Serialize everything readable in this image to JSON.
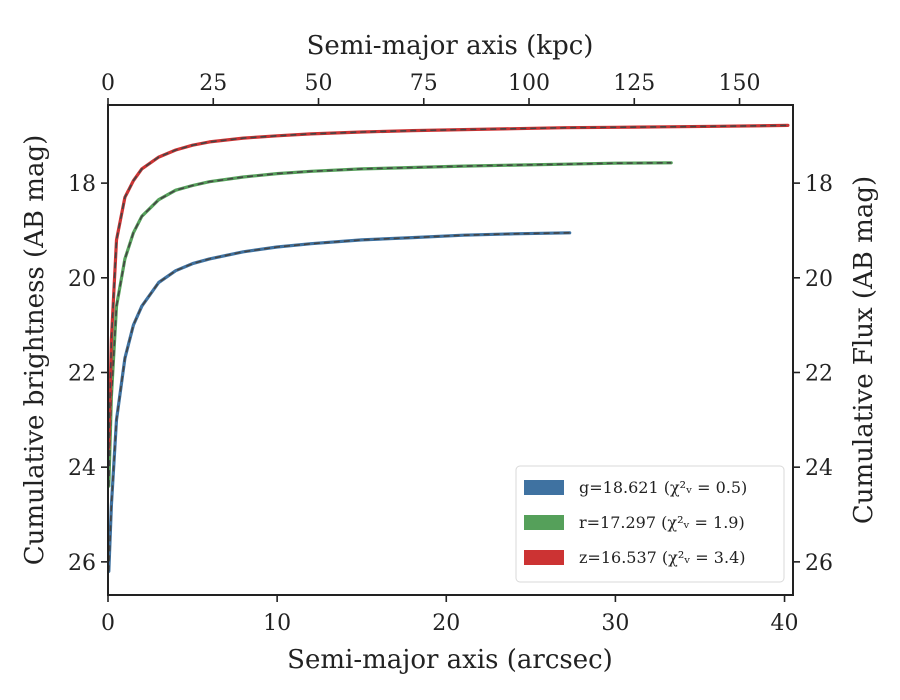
{
  "chart_data": {
    "type": "line",
    "xlabel": "Semi-major axis (arcsec)",
    "ylabel": "Cumulative brightness (AB mag)",
    "top_xlabel": "Semi-major axis (kpc)",
    "right_ylabel": "Cumulative Flux (AB mag)",
    "xlim": [
      0,
      40.5
    ],
    "ylim": [
      26.7,
      16.35
    ],
    "top_xlim": [
      0,
      162.7
    ],
    "x_ticks": [
      0,
      10,
      20,
      30,
      40
    ],
    "y_ticks": [
      18,
      20,
      22,
      24,
      26
    ],
    "top_x_ticks": [
      0,
      25,
      50,
      75,
      100,
      125,
      150
    ],
    "legend_position": "lower-right",
    "grid": false,
    "series": [
      {
        "name": "g=18.621",
        "chi_label": "(χ²ᵥ = 0.5)",
        "color": "#3f72a1",
        "x": [
          0.05,
          0.2,
          0.5,
          1,
          1.5,
          2,
          3,
          4,
          5,
          6,
          8,
          10,
          12,
          15,
          18,
          21,
          24,
          27.3
        ],
        "y": [
          26.2,
          24.8,
          23.0,
          21.7,
          21.0,
          20.6,
          20.1,
          19.85,
          19.7,
          19.6,
          19.45,
          19.35,
          19.28,
          19.2,
          19.15,
          19.1,
          19.07,
          19.05
        ]
      },
      {
        "name": "r=17.297",
        "chi_label": "(χ²ᵥ = 1.9)",
        "color": "#55a05a",
        "x": [
          0.05,
          0.2,
          0.5,
          1,
          1.5,
          2,
          3,
          4,
          5,
          6,
          8,
          10,
          12,
          15,
          18,
          21,
          24,
          27,
          30,
          33.3
        ],
        "y": [
          24.4,
          22.5,
          20.6,
          19.6,
          19.05,
          18.7,
          18.35,
          18.15,
          18.05,
          17.97,
          17.87,
          17.8,
          17.75,
          17.7,
          17.67,
          17.64,
          17.62,
          17.6,
          17.58,
          17.57
        ]
      },
      {
        "name": "z=16.537",
        "chi_label": "(χ²ᵥ = 3.4)",
        "color": "#cc3333",
        "x": [
          0.05,
          0.2,
          0.5,
          1,
          1.5,
          2,
          3,
          4,
          5,
          6,
          8,
          10,
          12,
          15,
          18,
          21,
          24,
          27,
          30,
          33,
          36,
          40.2
        ],
        "y": [
          23.6,
          21.3,
          19.2,
          18.3,
          17.95,
          17.7,
          17.45,
          17.3,
          17.2,
          17.13,
          17.05,
          17.0,
          16.96,
          16.92,
          16.89,
          16.87,
          16.85,
          16.83,
          16.82,
          16.81,
          16.8,
          16.78
        ]
      }
    ]
  }
}
